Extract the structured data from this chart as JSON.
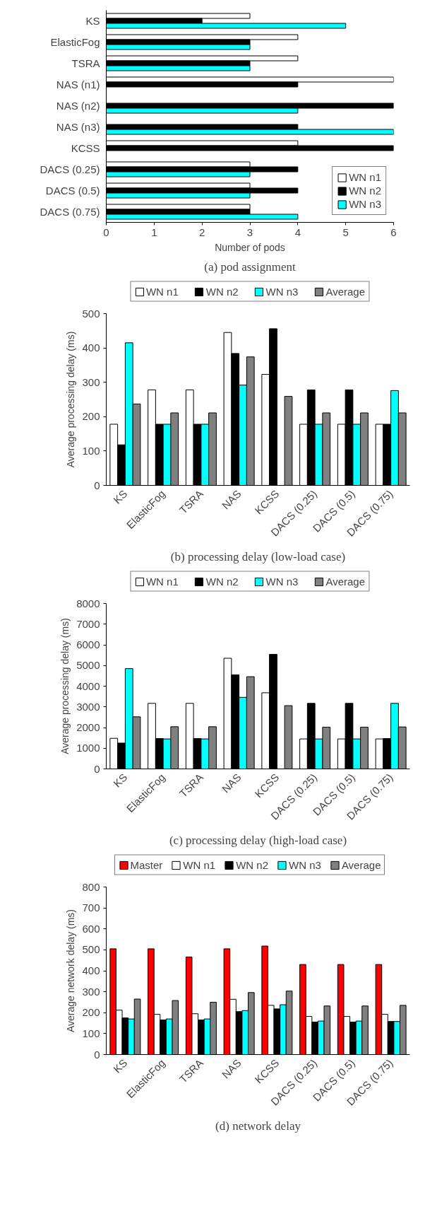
{
  "chart_data": [
    {
      "type": "bar",
      "orientation": "horizontal",
      "title": "(a) pod assignment",
      "xlabel": "Number of pods",
      "legend": "bottom right",
      "categories": [
        "KS",
        "ElasticFog",
        "TSRA",
        "NAS (n1)",
        "NAS (n2)",
        "NAS (n3)",
        "KCSS",
        "DACS (0.25)",
        "DACS (0.5)",
        "DACS (0.75)"
      ],
      "xlim": [
        0,
        6
      ],
      "xticks": [
        0,
        1,
        2,
        3,
        4,
        5,
        6
      ],
      "series": [
        {
          "name": "WN n1",
          "color": "#ffffff",
          "values": [
            3,
            4,
            4,
            6,
            0,
            0,
            4,
            3,
            3,
            3
          ]
        },
        {
          "name": "WN n2",
          "color": "#000000",
          "values": [
            2,
            3,
            3,
            4,
            6,
            4,
            6,
            4,
            4,
            3
          ]
        },
        {
          "name": "WN n3",
          "color": "#00ffff",
          "values": [
            5,
            3,
            3,
            0,
            4,
            6,
            0,
            3,
            3,
            4
          ]
        }
      ]
    },
    {
      "type": "bar",
      "title": "(b) processing delay (low-load case)",
      "ylabel": "Average processing delay (ms)",
      "legend": "top",
      "categories": [
        "KS",
        "ElasticFog",
        "TSRA",
        "NAS",
        "KCSS",
        "DACS (0.25)",
        "DACS (0.5)",
        "DACS (0.75)"
      ],
      "ylim": [
        0,
        500
      ],
      "yticks": [
        0,
        100,
        200,
        300,
        400,
        500
      ],
      "series": [
        {
          "name": "WN n1",
          "color": "#ffffff",
          "values": [
            178,
            278,
            278,
            445,
            323,
            178,
            178,
            178
          ]
        },
        {
          "name": "WN n2",
          "color": "#000000",
          "values": [
            118,
            178,
            178,
            384,
            456,
            278,
            278,
            178
          ]
        },
        {
          "name": "WN n3",
          "color": "#00ffff",
          "values": [
            415,
            178,
            178,
            292,
            0,
            178,
            178,
            276
          ]
        },
        {
          "name": "Average",
          "color": "#808080",
          "values": [
            237,
            211,
            211,
            374,
            259,
            211,
            211,
            211
          ]
        }
      ]
    },
    {
      "type": "bar",
      "title": "(c) processing delay (high-load case)",
      "ylabel": "Average processing delay (ms)",
      "legend": "top",
      "categories": [
        "KS",
        "ElasticFog",
        "TSRA",
        "NAS",
        "KCSS",
        "DACS (0.25)",
        "DACS (0.5)",
        "DACS (0.75)"
      ],
      "ylim": [
        0,
        8000
      ],
      "yticks": [
        0,
        1000,
        2000,
        3000,
        4000,
        5000,
        6000,
        7000,
        8000
      ],
      "series": [
        {
          "name": "WN n1",
          "color": "#ffffff",
          "values": [
            1480,
            3170,
            3170,
            5350,
            3680,
            1450,
            1450,
            1450
          ]
        },
        {
          "name": "WN n2",
          "color": "#000000",
          "values": [
            1250,
            1470,
            1470,
            4550,
            5540,
            3170,
            3170,
            1470
          ]
        },
        {
          "name": "WN n3",
          "color": "#00ffff",
          "values": [
            4850,
            1450,
            1450,
            3460,
            0,
            1450,
            1450,
            3170
          ]
        },
        {
          "name": "Average",
          "color": "#808080",
          "values": [
            2520,
            2040,
            2040,
            4460,
            3060,
            2020,
            2020,
            2030
          ]
        }
      ]
    },
    {
      "type": "bar",
      "title": "(d) network delay",
      "ylabel": "Average network delay (ms)",
      "legend": "top",
      "categories": [
        "KS",
        "ElasticFog",
        "TSRA",
        "NAS",
        "KCSS",
        "DACS (0.25)",
        "DACS (0.5)",
        "DACS (0.75)"
      ],
      "ylim": [
        0,
        800
      ],
      "yticks": [
        0,
        100,
        200,
        300,
        400,
        500,
        600,
        700,
        800
      ],
      "series": [
        {
          "name": "Master",
          "color": "#ff0000",
          "values": [
            505,
            505,
            466,
            505,
            518,
            430,
            430,
            430
          ]
        },
        {
          "name": "WN n1",
          "color": "#ffffff",
          "values": [
            212,
            192,
            195,
            264,
            235,
            182,
            182,
            192
          ]
        },
        {
          "name": "WN n2",
          "color": "#000000",
          "values": [
            175,
            165,
            165,
            205,
            218,
            155,
            155,
            158
          ]
        },
        {
          "name": "WN n3",
          "color": "#00ffff",
          "values": [
            170,
            170,
            170,
            210,
            238,
            160,
            160,
            158
          ]
        },
        {
          "name": "Average",
          "color": "#808080",
          "values": [
            265,
            258,
            250,
            296,
            303,
            232,
            232,
            235
          ]
        }
      ]
    }
  ]
}
